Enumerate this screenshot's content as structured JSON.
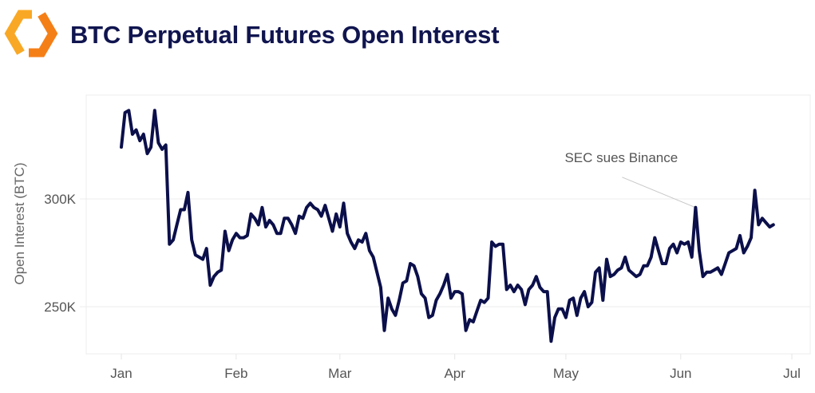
{
  "header": {
    "title": "BTC Perpetual Futures Open Interest",
    "logo_icon": "orange-hexagon-logo-icon"
  },
  "colors": {
    "line": "#0b0f4a",
    "title": "#10154f",
    "logo_light": "#f9a825",
    "logo_dark": "#f57f17",
    "grid": "#ececec"
  },
  "chart_data": {
    "type": "line",
    "title": "BTC Perpetual Futures Open Interest",
    "xlabel": "",
    "ylabel": "Open Interest (BTC)",
    "x_ticks": [
      {
        "date": "01-01",
        "label": "Jan"
      },
      {
        "date": "02-01",
        "label": "Feb"
      },
      {
        "date": "03-01",
        "label": "Mar"
      },
      {
        "date": "04-01",
        "label": "Apr"
      },
      {
        "date": "05-01",
        "label": "May"
      },
      {
        "date": "06-01",
        "label": "Jun"
      },
      {
        "date": "07-01",
        "label": "Jul"
      }
    ],
    "y_ticks": [
      {
        "value": 250000,
        "label": "250K"
      },
      {
        "value": 300000,
        "label": "300K"
      }
    ],
    "ylim": [
      228500,
      348000
    ],
    "xlim": [
      "12-20",
      "07-06"
    ],
    "grid": "horizontal",
    "legend": "none",
    "annotations": [
      {
        "text": "SEC sues Binance",
        "date": "06-05",
        "value": 296000
      }
    ],
    "series": [
      {
        "points": [
          [
            "01-01",
            324000
          ],
          [
            "01-02",
            340000
          ],
          [
            "01-03",
            341000
          ],
          [
            "01-04",
            330000
          ],
          [
            "01-05",
            332000
          ],
          [
            "01-06",
            327000
          ],
          [
            "01-07",
            330000
          ],
          [
            "01-08",
            321000
          ],
          [
            "01-09",
            324000
          ],
          [
            "01-10",
            341000
          ],
          [
            "01-11",
            326000
          ],
          [
            "01-12",
            323000
          ],
          [
            "01-13",
            325000
          ],
          [
            "01-14",
            279000
          ],
          [
            "01-15",
            281000
          ],
          [
            "01-16",
            288000
          ],
          [
            "01-17",
            295000
          ],
          [
            "01-18",
            295000
          ],
          [
            "01-19",
            303000
          ],
          [
            "01-20",
            281000
          ],
          [
            "01-21",
            274000
          ],
          [
            "01-22",
            273000
          ],
          [
            "01-23",
            272000
          ],
          [
            "01-24",
            277000
          ],
          [
            "01-25",
            260000
          ],
          [
            "01-26",
            264000
          ],
          [
            "01-27",
            266000
          ],
          [
            "01-28",
            267000
          ],
          [
            "01-29",
            285000
          ],
          [
            "01-30",
            276000
          ],
          [
            "01-31",
            281000
          ],
          [
            "02-01",
            284000
          ],
          [
            "02-02",
            282000
          ],
          [
            "02-03",
            282000
          ],
          [
            "02-04",
            283000
          ],
          [
            "02-05",
            293000
          ],
          [
            "02-06",
            291000
          ],
          [
            "02-07",
            288000
          ],
          [
            "02-08",
            296000
          ],
          [
            "02-09",
            287000
          ],
          [
            "02-10",
            290000
          ],
          [
            "02-11",
            288000
          ],
          [
            "02-12",
            284000
          ],
          [
            "02-13",
            284000
          ],
          [
            "02-14",
            291000
          ],
          [
            "02-15",
            291000
          ],
          [
            "02-16",
            288000
          ],
          [
            "02-17",
            284000
          ],
          [
            "02-18",
            292000
          ],
          [
            "02-19",
            291000
          ],
          [
            "02-20",
            296000
          ],
          [
            "02-21",
            298000
          ],
          [
            "02-22",
            296000
          ],
          [
            "02-23",
            295000
          ],
          [
            "02-24",
            292000
          ],
          [
            "02-25",
            297000
          ],
          [
            "02-26",
            291000
          ],
          [
            "02-27",
            285000
          ],
          [
            "02-28",
            293000
          ],
          [
            "03-01",
            287000
          ],
          [
            "03-02",
            298000
          ],
          [
            "03-03",
            284000
          ],
          [
            "03-04",
            280000
          ],
          [
            "03-05",
            277000
          ],
          [
            "03-06",
            281000
          ],
          [
            "03-07",
            280000
          ],
          [
            "03-08",
            284000
          ],
          [
            "03-09",
            276000
          ],
          [
            "03-10",
            273000
          ],
          [
            "03-12",
            259000
          ],
          [
            "03-13",
            239000
          ],
          [
            "03-14",
            254000
          ],
          [
            "03-15",
            249000
          ],
          [
            "03-16",
            246000
          ],
          [
            "03-17",
            253000
          ],
          [
            "03-18",
            261000
          ],
          [
            "03-19",
            262000
          ],
          [
            "03-20",
            270000
          ],
          [
            "03-21",
            269000
          ],
          [
            "03-22",
            264000
          ],
          [
            "03-23",
            256000
          ],
          [
            "03-24",
            254000
          ],
          [
            "03-25",
            245000
          ],
          [
            "03-26",
            246000
          ],
          [
            "03-27",
            253000
          ],
          [
            "03-28",
            256000
          ],
          [
            "03-29",
            260000
          ],
          [
            "03-30",
            265000
          ],
          [
            "03-31",
            254000
          ],
          [
            "04-01",
            257000
          ],
          [
            "04-02",
            257000
          ],
          [
            "04-03",
            256000
          ],
          [
            "04-04",
            239000
          ],
          [
            "04-05",
            244000
          ],
          [
            "04-06",
            243000
          ],
          [
            "04-07",
            248000
          ],
          [
            "04-08",
            253000
          ],
          [
            "04-09",
            252000
          ],
          [
            "04-10",
            254000
          ],
          [
            "04-11",
            280000
          ],
          [
            "04-12",
            278000
          ],
          [
            "04-13",
            279000
          ],
          [
            "04-14",
            279000
          ],
          [
            "04-15",
            258000
          ],
          [
            "04-16",
            260000
          ],
          [
            "04-17",
            257000
          ],
          [
            "04-18",
            260000
          ],
          [
            "04-19",
            258000
          ],
          [
            "04-20",
            251000
          ],
          [
            "04-21",
            258000
          ],
          [
            "04-22",
            260000
          ],
          [
            "04-23",
            264000
          ],
          [
            "04-24",
            259000
          ],
          [
            "04-25",
            257000
          ],
          [
            "04-26",
            257000
          ],
          [
            "04-27",
            234000
          ],
          [
            "04-28",
            245000
          ],
          [
            "04-29",
            249000
          ],
          [
            "04-30",
            249000
          ],
          [
            "05-01",
            245000
          ],
          [
            "05-02",
            253000
          ],
          [
            "05-03",
            254000
          ],
          [
            "05-04",
            246000
          ],
          [
            "05-05",
            254000
          ],
          [
            "05-06",
            257000
          ],
          [
            "05-07",
            250000
          ],
          [
            "05-08",
            252000
          ],
          [
            "05-09",
            266000
          ],
          [
            "05-10",
            268000
          ],
          [
            "05-11",
            253000
          ],
          [
            "05-12",
            272000
          ],
          [
            "05-13",
            264000
          ],
          [
            "05-14",
            265000
          ],
          [
            "05-15",
            267000
          ],
          [
            "05-16",
            268000
          ],
          [
            "05-17",
            273000
          ],
          [
            "05-18",
            267000
          ],
          [
            "05-20",
            264000
          ],
          [
            "05-21",
            265000
          ],
          [
            "05-22",
            269000
          ],
          [
            "05-23",
            269000
          ],
          [
            "05-24",
            273000
          ],
          [
            "05-25",
            282000
          ],
          [
            "05-26",
            276000
          ],
          [
            "05-27",
            270000
          ],
          [
            "05-28",
            270000
          ],
          [
            "05-29",
            277000
          ],
          [
            "05-30",
            279000
          ],
          [
            "05-31",
            275000
          ],
          [
            "06-01",
            280000
          ],
          [
            "06-02",
            279000
          ],
          [
            "06-03",
            280000
          ],
          [
            "06-04",
            273000
          ],
          [
            "06-05",
            296000
          ],
          [
            "06-06",
            276000
          ],
          [
            "06-07",
            264000
          ],
          [
            "06-08",
            266000
          ],
          [
            "06-09",
            266000
          ],
          [
            "06-10",
            267000
          ],
          [
            "06-11",
            268000
          ],
          [
            "06-12",
            265000
          ],
          [
            "06-13",
            270000
          ],
          [
            "06-14",
            275000
          ],
          [
            "06-15",
            276000
          ],
          [
            "06-16",
            277000
          ],
          [
            "06-17",
            283000
          ],
          [
            "06-18",
            275000
          ],
          [
            "06-19",
            278000
          ],
          [
            "06-20",
            282000
          ],
          [
            "06-21",
            304000
          ],
          [
            "06-22",
            288000
          ],
          [
            "06-23",
            291000
          ],
          [
            "06-24",
            289000
          ],
          [
            "06-25",
            287000
          ],
          [
            "06-26",
            288000
          ]
        ]
      }
    ]
  }
}
